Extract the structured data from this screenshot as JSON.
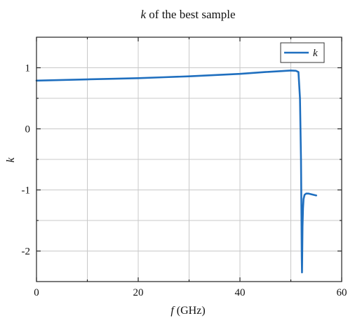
{
  "chart_data": {
    "type": "line",
    "title_var": "k",
    "title_rest": " of the best sample",
    "xlabel_var": "f",
    "xlabel_rest": " (GHz)",
    "ylabel": "k",
    "xlim": [
      0,
      60
    ],
    "ylim": [
      -2.5,
      1.5
    ],
    "x_ticks": [
      0,
      20,
      40,
      60
    ],
    "x_tick_labels": [
      "0",
      "20",
      "40",
      "60"
    ],
    "y_ticks": [
      1,
      0,
      -1,
      -2
    ],
    "y_tick_labels": [
      "1",
      "0",
      "-1",
      "-2"
    ],
    "x_minor_grid": [
      10,
      30,
      50
    ],
    "y_minor_grid": [
      0.5,
      -0.5,
      -1.5
    ],
    "grid": true,
    "legend_position": "top-right",
    "series": [
      {
        "name": "k",
        "color": "#1f6fbf",
        "x": [
          0,
          5,
          10,
          15,
          20,
          25,
          30,
          35,
          40,
          45,
          48,
          50,
          51,
          51.5,
          51.8,
          52.0,
          52.1,
          52.15,
          52.2,
          52.25,
          52.3,
          52.4,
          52.5,
          52.7,
          53.0,
          53.5,
          54.0,
          54.5,
          55.0
        ],
        "values": [
          0.79,
          0.8,
          0.81,
          0.82,
          0.83,
          0.845,
          0.86,
          0.88,
          0.9,
          0.93,
          0.945,
          0.955,
          0.95,
          0.93,
          0.5,
          -0.5,
          -1.5,
          -2.1,
          -2.35,
          -2.0,
          -1.6,
          -1.3,
          -1.15,
          -1.08,
          -1.06,
          -1.06,
          -1.07,
          -1.08,
          -1.09
        ]
      }
    ]
  }
}
